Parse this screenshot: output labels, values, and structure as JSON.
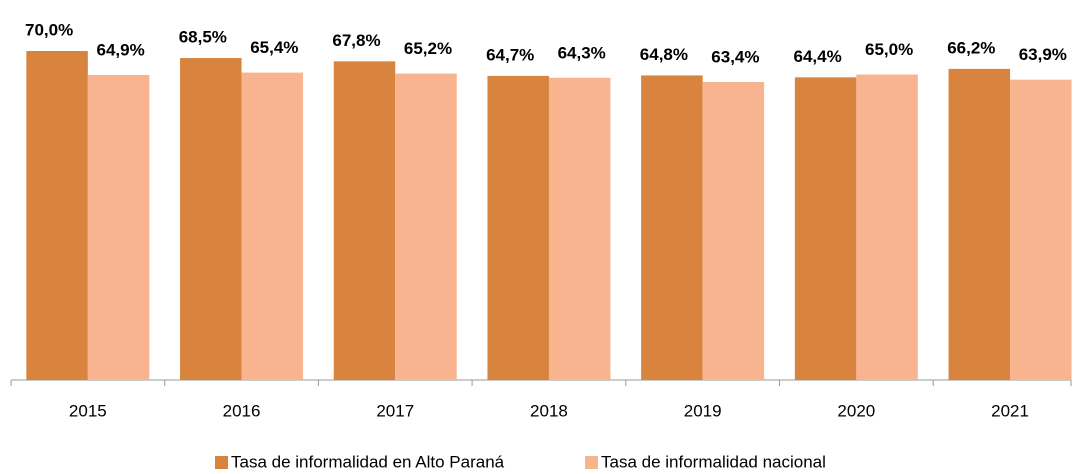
{
  "chart_data": {
    "type": "bar",
    "categories": [
      "2015",
      "2016",
      "2017",
      "2018",
      "2019",
      "2020",
      "2021"
    ],
    "series": [
      {
        "name": "Tasa de informalidad en Alto Paraná",
        "color": "#d9843e",
        "values": [
          70.0,
          68.5,
          67.8,
          64.7,
          64.8,
          64.4,
          66.2
        ],
        "value_labels": [
          "70,0%",
          "68,5%",
          "67,8%",
          "64,7%",
          "64,8%",
          "64,4%",
          "66,2%"
        ]
      },
      {
        "name": "Tasa de informalidad nacional",
        "color": "#f7b48f",
        "values": [
          64.9,
          65.4,
          65.2,
          64.3,
          63.4,
          65.0,
          63.9
        ],
        "value_labels": [
          "64,9%",
          "65,4%",
          "65,2%",
          "64,3%",
          "63,4%",
          "65,0%",
          "63,9%"
        ]
      }
    ],
    "ylim": [
      0,
      70
    ],
    "legend": "bottom"
  }
}
